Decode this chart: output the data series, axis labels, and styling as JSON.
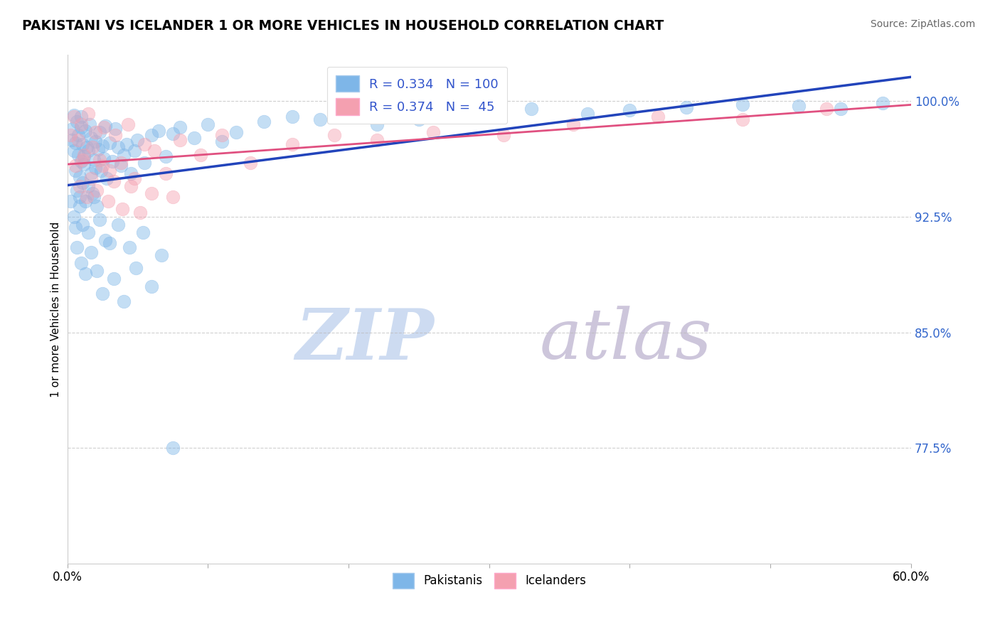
{
  "title": "PAKISTANI VS ICELANDER 1 OR MORE VEHICLES IN HOUSEHOLD CORRELATION CHART",
  "source": "Source: ZipAtlas.com",
  "ylabel": "1 or more Vehicles in Household",
  "xlim": [
    0.0,
    60.0
  ],
  "ylim": [
    70.0,
    103.0
  ],
  "yticks": [
    77.5,
    85.0,
    92.5,
    100.0
  ],
  "ytick_labels": [
    "77.5%",
    "85.0%",
    "92.5%",
    "100.0%"
  ],
  "legend_pakistani": "R = 0.334   N = 100",
  "legend_icelander": "R = 0.374   N =  45",
  "color_pakistani": "#7EB6E8",
  "color_icelander": "#F4A0B0",
  "color_line_pakistani": "#2244BB",
  "color_line_icelander": "#E05080",
  "watermark_zip": "ZIP",
  "watermark_atlas": "atlas",
  "watermark_color_zip": "#C8D8F0",
  "watermark_color_atlas": "#C8C0D8",
  "pakistani_x": [
    0.2,
    0.3,
    0.4,
    0.5,
    0.5,
    0.6,
    0.6,
    0.7,
    0.7,
    0.8,
    0.8,
    0.9,
    0.9,
    1.0,
    1.0,
    1.0,
    1.1,
    1.1,
    1.2,
    1.2,
    1.3,
    1.3,
    1.4,
    1.5,
    1.5,
    1.6,
    1.7,
    1.7,
    1.8,
    1.9,
    2.0,
    2.0,
    2.1,
    2.2,
    2.3,
    2.4,
    2.5,
    2.6,
    2.7,
    2.8,
    3.0,
    3.2,
    3.4,
    3.6,
    3.8,
    4.0,
    4.2,
    4.5,
    4.8,
    5.0,
    5.5,
    6.0,
    6.5,
    7.0,
    7.5,
    8.0,
    9.0,
    10.0,
    11.0,
    12.0,
    14.0,
    16.0,
    18.0,
    20.0,
    22.0,
    25.0,
    28.0,
    30.0,
    33.0,
    37.0,
    40.0,
    44.0,
    48.0,
    52.0,
    55.0,
    58.0,
    0.5,
    0.6,
    0.7,
    0.9,
    1.0,
    1.1,
    1.3,
    1.5,
    1.7,
    1.9,
    2.1,
    2.3,
    2.5,
    2.7,
    3.0,
    3.3,
    3.6,
    4.0,
    4.4,
    4.9,
    5.4,
    6.0,
    6.7,
    7.5
  ],
  "pakistani_y": [
    93.5,
    97.5,
    98.2,
    96.8,
    99.1,
    97.3,
    95.5,
    98.7,
    94.2,
    96.5,
    97.8,
    95.1,
    93.8,
    98.3,
    96.1,
    99.0,
    94.7,
    97.2,
    95.9,
    96.4,
    98.1,
    93.5,
    97.0,
    94.5,
    96.8,
    98.5,
    95.3,
    97.6,
    94.0,
    96.2,
    95.7,
    97.4,
    93.2,
    96.9,
    98.0,
    95.5,
    97.1,
    96.3,
    98.4,
    95.0,
    97.3,
    96.1,
    98.2,
    97.0,
    95.8,
    96.5,
    97.2,
    95.3,
    96.8,
    97.5,
    96.0,
    97.8,
    98.1,
    96.4,
    97.9,
    98.3,
    97.6,
    98.5,
    97.4,
    98.0,
    98.7,
    99.0,
    98.8,
    99.2,
    98.5,
    98.8,
    99.0,
    99.3,
    99.5,
    99.2,
    99.4,
    99.6,
    99.8,
    99.7,
    99.5,
    99.9,
    92.5,
    91.8,
    90.5,
    93.2,
    89.5,
    92.0,
    88.8,
    91.5,
    90.2,
    93.8,
    89.0,
    92.3,
    87.5,
    91.0,
    90.8,
    88.5,
    92.0,
    87.0,
    90.5,
    89.2,
    91.5,
    88.0,
    90.0,
    77.5
  ],
  "icelander_x": [
    0.2,
    0.5,
    0.8,
    1.0,
    1.2,
    1.5,
    1.8,
    2.0,
    2.3,
    2.6,
    3.0,
    3.4,
    3.8,
    4.3,
    4.8,
    5.5,
    6.2,
    7.0,
    8.0,
    9.5,
    11.0,
    13.0,
    16.0,
    19.0,
    22.0,
    26.0,
    31.0,
    36.0,
    42.0,
    48.0,
    54.0,
    0.6,
    0.9,
    1.1,
    1.4,
    1.7,
    2.1,
    2.5,
    2.9,
    3.3,
    3.9,
    4.5,
    5.2,
    6.0,
    7.5
  ],
  "icelander_y": [
    97.8,
    99.0,
    97.5,
    98.5,
    96.5,
    99.2,
    97.0,
    98.0,
    96.2,
    98.3,
    95.5,
    97.8,
    96.0,
    98.5,
    95.0,
    97.2,
    96.8,
    95.3,
    97.5,
    96.5,
    97.8,
    96.0,
    97.2,
    97.8,
    97.5,
    98.0,
    97.8,
    98.5,
    99.0,
    98.8,
    99.5,
    95.8,
    94.5,
    96.2,
    93.8,
    95.0,
    94.2,
    95.8,
    93.5,
    94.8,
    93.0,
    94.5,
    92.8,
    94.0,
    93.8
  ]
}
